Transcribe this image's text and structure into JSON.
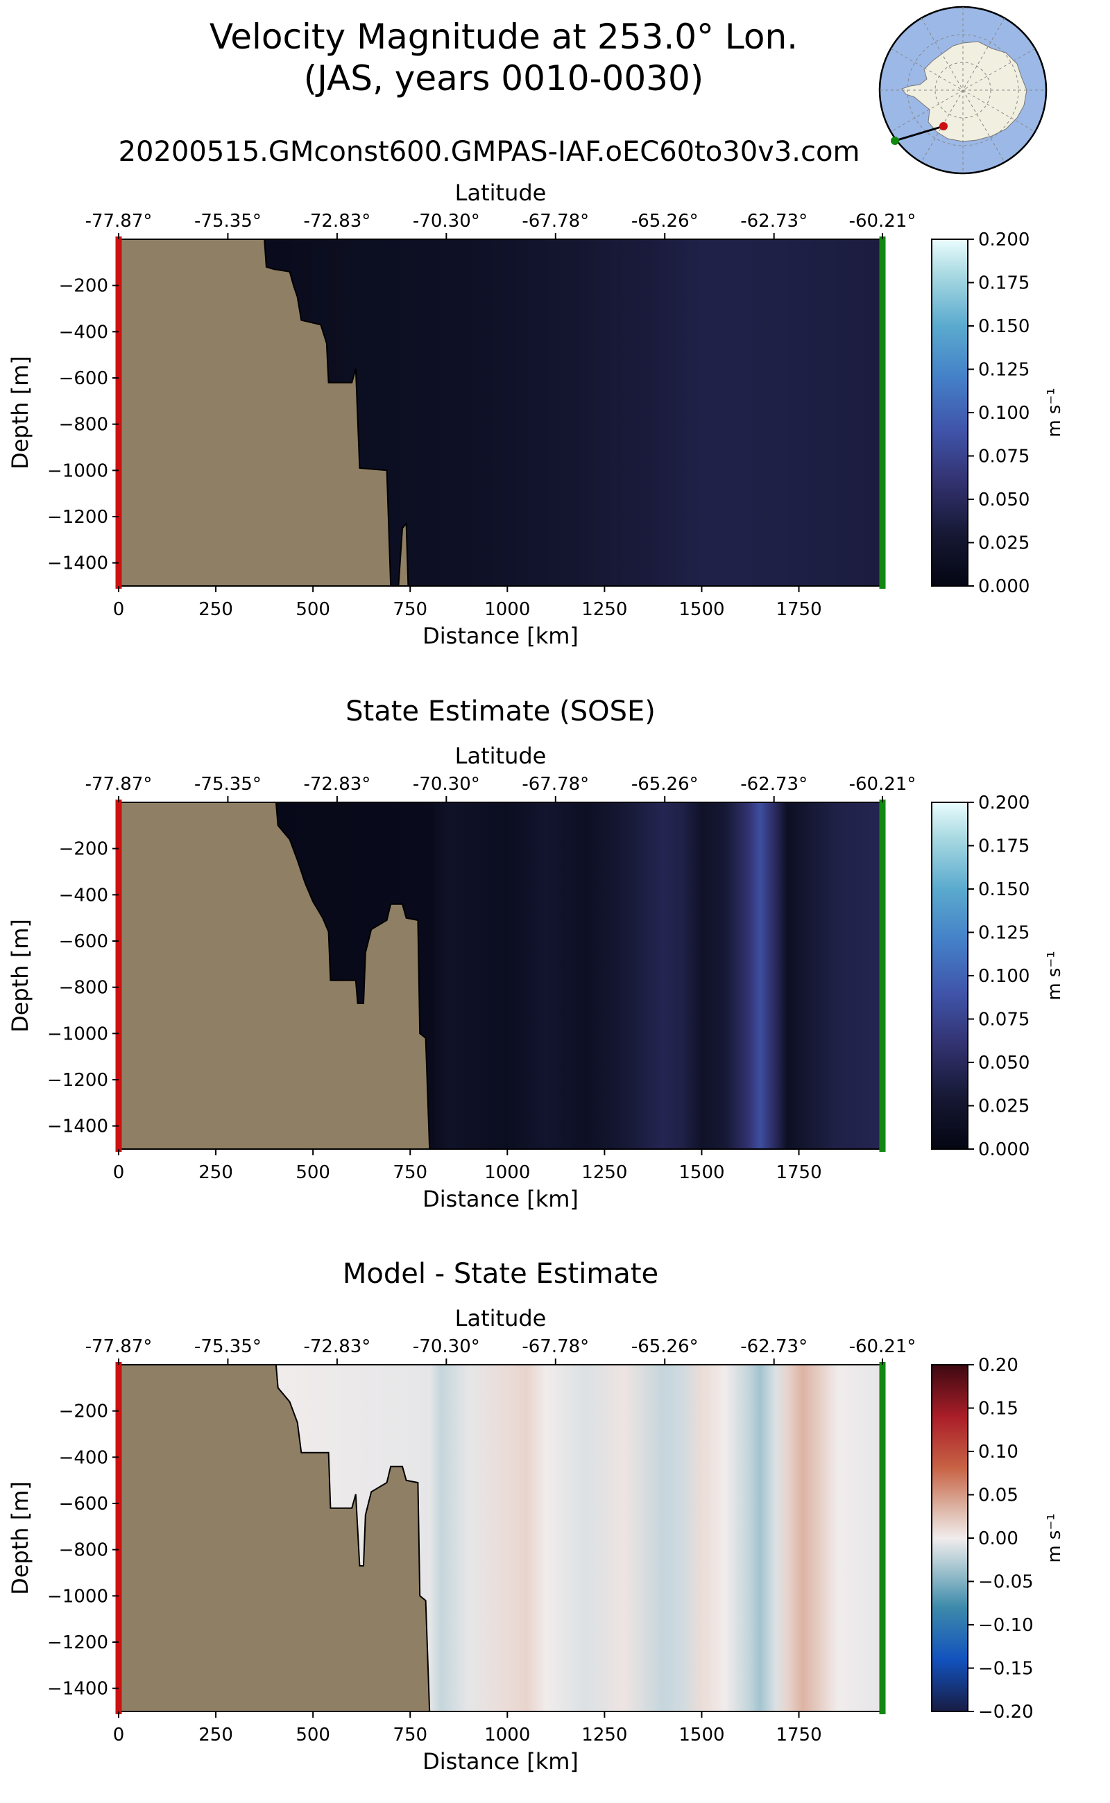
{
  "header": {
    "title_line1": "Velocity Magnitude at 253.0° Lon.",
    "title_line2": "(JAS, years 0010-0030)",
    "run_name": "20200515.GMconst600.GMPAS-IAF.oEC60to30v3.com"
  },
  "colors": {
    "land": "#8f7f64",
    "left_edge_marker": "#cc1111",
    "right_edge_marker": "#118811",
    "map_ocean": "#9bb8e6",
    "map_land": "#f1efe0",
    "transect_line": "#000000"
  },
  "chart_data": [
    {
      "type": "heatmap",
      "title": "",
      "xlabel": "Distance [km]",
      "ylabel": "Depth [m]",
      "top_xlabel": "Latitude",
      "xlim": [
        0,
        1965
      ],
      "ylim": [
        -1500,
        0
      ],
      "x_ticks": [
        0,
        250,
        500,
        750,
        1000,
        1250,
        1500,
        1750
      ],
      "x_tick_labels": [
        "0",
        "250",
        "500",
        "750",
        "1000",
        "1250",
        "1500",
        "1750"
      ],
      "y_ticks": [
        -200,
        -400,
        -600,
        -800,
        -1000,
        -1200,
        -1400
      ],
      "y_tick_labels": [
        "−200",
        "−400",
        "−600",
        "−800",
        "−1000",
        "−1200",
        "−1400"
      ],
      "top_ticks": [
        0,
        281,
        562,
        843,
        1124,
        1405,
        1686,
        1965
      ],
      "top_tick_labels": [
        "-77.87°",
        "-75.35°",
        "-72.83°",
        "-70.30°",
        "-67.78°",
        "-65.26°",
        "-62.73°",
        "-60.21°"
      ],
      "colormap": "ice",
      "clim": [
        0.0,
        0.2
      ],
      "colorbar_ticks": [
        "0.000",
        "0.025",
        "0.050",
        "0.075",
        "0.100",
        "0.125",
        "0.150",
        "0.175",
        "0.200"
      ],
      "colorbar_label": "m s⁻¹",
      "bathymetry": [
        [
          0,
          0
        ],
        [
          375,
          0
        ],
        [
          380,
          -120
        ],
        [
          400,
          -130
        ],
        [
          440,
          -140
        ],
        [
          450,
          -200
        ],
        [
          460,
          -250
        ],
        [
          470,
          -350
        ],
        [
          520,
          -370
        ],
        [
          535,
          -450
        ],
        [
          540,
          -620
        ],
        [
          600,
          -620
        ],
        [
          610,
          -560
        ],
        [
          620,
          -990
        ],
        [
          690,
          -1000
        ],
        [
          700,
          -1500
        ],
        [
          0,
          -1500
        ]
      ],
      "land_islands": [
        [
          [
            720,
            -1500
          ],
          [
            730,
            -1250
          ],
          [
            740,
            -1230
          ],
          [
            745,
            -1500
          ]
        ]
      ],
      "field_x": [
        0,
        400,
        600,
        800,
        1000,
        1200,
        1400,
        1500,
        1600,
        1750,
        1965
      ],
      "field_values": [
        0.005,
        0.01,
        0.013,
        0.015,
        0.02,
        0.028,
        0.035,
        0.04,
        0.04,
        0.038,
        0.035
      ]
    },
    {
      "type": "heatmap",
      "title": "State Estimate (SOSE)",
      "xlabel": "Distance [km]",
      "ylabel": "Depth [m]",
      "top_xlabel": "Latitude",
      "xlim": [
        0,
        1965
      ],
      "ylim": [
        -1500,
        0
      ],
      "x_ticks": [
        0,
        250,
        500,
        750,
        1000,
        1250,
        1500,
        1750
      ],
      "x_tick_labels": [
        "0",
        "250",
        "500",
        "750",
        "1000",
        "1250",
        "1500",
        "1750"
      ],
      "y_ticks": [
        -200,
        -400,
        -600,
        -800,
        -1000,
        -1200,
        -1400
      ],
      "y_tick_labels": [
        "−200",
        "−400",
        "−600",
        "−800",
        "−1000",
        "−1200",
        "−1400"
      ],
      "top_ticks": [
        0,
        281,
        562,
        843,
        1124,
        1405,
        1686,
        1965
      ],
      "top_tick_labels": [
        "-77.87°",
        "-75.35°",
        "-72.83°",
        "-70.30°",
        "-67.78°",
        "-65.26°",
        "-62.73°",
        "-60.21°"
      ],
      "colormap": "ice",
      "clim": [
        0.0,
        0.2
      ],
      "colorbar_ticks": [
        "0.000",
        "0.025",
        "0.050",
        "0.075",
        "0.100",
        "0.125",
        "0.150",
        "0.175",
        "0.200"
      ],
      "colorbar_label": "m s⁻¹",
      "bathymetry": [
        [
          0,
          0
        ],
        [
          405,
          0
        ],
        [
          410,
          -100
        ],
        [
          440,
          -160
        ],
        [
          460,
          -250
        ],
        [
          480,
          -350
        ],
        [
          500,
          -430
        ],
        [
          525,
          -500
        ],
        [
          540,
          -560
        ],
        [
          545,
          -770
        ],
        [
          610,
          -770
        ],
        [
          615,
          -870
        ],
        [
          630,
          -870
        ],
        [
          635,
          -650
        ],
        [
          650,
          -550
        ],
        [
          690,
          -510
        ],
        [
          700,
          -440
        ],
        [
          730,
          -440
        ],
        [
          740,
          -500
        ],
        [
          770,
          -510
        ],
        [
          775,
          -1000
        ],
        [
          790,
          -1020
        ],
        [
          800,
          -1500
        ],
        [
          0,
          -1500
        ]
      ],
      "land_islands": [],
      "field_x": [
        0,
        400,
        800,
        850,
        1000,
        1100,
        1200,
        1300,
        1400,
        1450,
        1500,
        1560,
        1620,
        1650,
        1690,
        1720,
        1780,
        1850,
        1965
      ],
      "field_values": [
        0.005,
        0.005,
        0.008,
        0.02,
        0.012,
        0.025,
        0.015,
        0.03,
        0.045,
        0.04,
        0.02,
        0.03,
        0.06,
        0.085,
        0.05,
        0.015,
        0.03,
        0.04,
        0.045
      ]
    },
    {
      "type": "heatmap",
      "title": "Model - State Estimate",
      "xlabel": "Distance [km]",
      "ylabel": "Depth [m]",
      "top_xlabel": "Latitude",
      "xlim": [
        0,
        1965
      ],
      "ylim": [
        -1500,
        0
      ],
      "x_ticks": [
        0,
        250,
        500,
        750,
        1000,
        1250,
        1500,
        1750
      ],
      "x_tick_labels": [
        "0",
        "250",
        "500",
        "750",
        "1000",
        "1250",
        "1500",
        "1750"
      ],
      "y_ticks": [
        -200,
        -400,
        -600,
        -800,
        -1000,
        -1200,
        -1400
      ],
      "y_tick_labels": [
        "−200",
        "−400",
        "−600",
        "−800",
        "−1000",
        "−1200",
        "−1400"
      ],
      "top_ticks": [
        0,
        281,
        562,
        843,
        1124,
        1405,
        1686,
        1965
      ],
      "top_tick_labels": [
        "-77.87°",
        "-75.35°",
        "-72.83°",
        "-70.30°",
        "-67.78°",
        "-65.26°",
        "-62.73°",
        "-60.21°"
      ],
      "colormap": "balance",
      "clim": [
        -0.2,
        0.2
      ],
      "colorbar_ticks": [
        "−0.20",
        "−0.15",
        "−0.10",
        "−0.05",
        "0.00",
        "0.05",
        "0.10",
        "0.15",
        "0.20"
      ],
      "colorbar_label": "m s⁻¹",
      "bathymetry": [
        [
          0,
          0
        ],
        [
          405,
          0
        ],
        [
          410,
          -100
        ],
        [
          440,
          -160
        ],
        [
          460,
          -250
        ],
        [
          470,
          -380
        ],
        [
          540,
          -380
        ],
        [
          545,
          -620
        ],
        [
          600,
          -620
        ],
        [
          610,
          -560
        ],
        [
          620,
          -870
        ],
        [
          630,
          -870
        ],
        [
          635,
          -650
        ],
        [
          650,
          -550
        ],
        [
          690,
          -510
        ],
        [
          700,
          -440
        ],
        [
          730,
          -440
        ],
        [
          740,
          -500
        ],
        [
          770,
          -510
        ],
        [
          775,
          -1000
        ],
        [
          790,
          -1020
        ],
        [
          800,
          -1500
        ],
        [
          0,
          -1500
        ]
      ],
      "land_islands": [],
      "field_x": [
        0,
        400,
        800,
        830,
        900,
        1000,
        1050,
        1100,
        1200,
        1300,
        1400,
        1450,
        1500,
        1560,
        1620,
        1650,
        1690,
        1720,
        1760,
        1800,
        1850,
        1965
      ],
      "field_values": [
        0.0,
        0.0,
        -0.005,
        -0.02,
        -0.005,
        0.01,
        0.015,
        0.0,
        -0.01,
        0.005,
        -0.02,
        -0.015,
        0.01,
        0.0,
        -0.02,
        -0.035,
        -0.01,
        0.015,
        0.035,
        0.02,
        0.0,
        -0.005
      ]
    }
  ]
}
